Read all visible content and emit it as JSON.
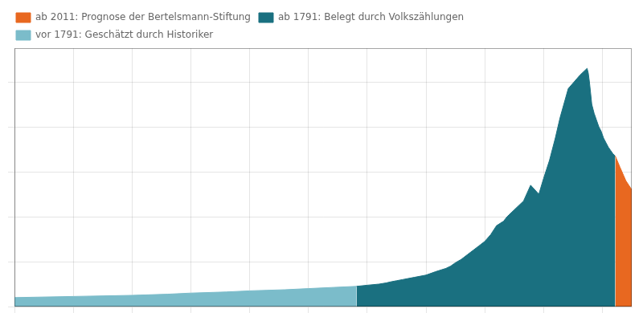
{
  "chart_data": {
    "type": "area",
    "series": [
      {
        "name": "vor 1791: Geschätzt durch Historiker",
        "color": "#7bbcca",
        "x": [
          1500,
          1550,
          1600,
          1630,
          1650,
          1680,
          1700,
          1730,
          1750,
          1770,
          1791
        ],
        "values": [
          4000,
          4500,
          5000,
          5500,
          6000,
          6500,
          7000,
          7500,
          8000,
          8500,
          9000
        ]
      },
      {
        "name": "ab 1791: Belegt durch Volkszählungen",
        "color": "#1a7080",
        "x": [
          1791,
          1800,
          1810,
          1816,
          1820,
          1825,
          1830,
          1840,
          1850,
          1858,
          1867,
          1871,
          1875,
          1880,
          1885,
          1890,
          1895,
          1900,
          1905,
          1910,
          1916,
          1919,
          1925,
          1933,
          1939,
          1946,
          1950,
          1955,
          1960,
          1964,
          1971,
          1981,
          1987,
          1988,
          1989,
          1990,
          1991,
          1993,
          1995,
          1997,
          1999,
          2001,
          2003,
          2005,
          2007,
          2009,
          2011
        ],
        "values": [
          9000,
          9500,
          10000,
          10500,
          11000,
          11500,
          12000,
          13000,
          14000,
          15500,
          17000,
          18000,
          19500,
          21000,
          23000,
          25000,
          27000,
          29000,
          32000,
          36000,
          38000,
          40000,
          43000,
          47000,
          54000,
          50000,
          57000,
          65000,
          75000,
          84000,
          97000,
          103000,
          106000,
          104000,
          100000,
          95000,
          90000,
          86000,
          83000,
          80000,
          78000,
          75000,
          73000,
          71000,
          69500,
          68000,
          67000
        ]
      },
      {
        "name": "ab 2011: Prognose der Bertelsmann-Stiftung",
        "color": "#e86820",
        "x": [
          2011,
          2015,
          2020,
          2025
        ],
        "values": [
          67000,
          62000,
          56000,
          52000
        ]
      }
    ],
    "xlim": [
      1500,
      2025
    ],
    "xticks": [
      1500,
      1550,
      1600,
      1650,
      1700,
      1750,
      1800,
      1850,
      1900,
      1950,
      2000
    ],
    "ylim": [
      0,
      115000
    ],
    "yticks": [
      0,
      20000,
      40000,
      60000,
      80000,
      100000
    ],
    "grid": true,
    "legend": "upper left",
    "tick_labels": false
  }
}
